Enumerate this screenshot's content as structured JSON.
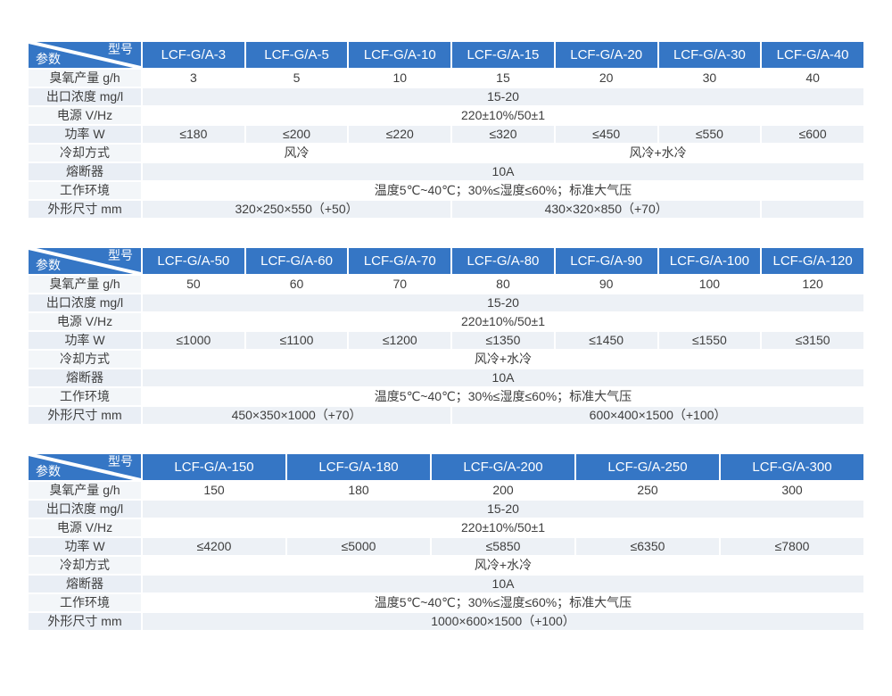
{
  "colors": {
    "header_bg": "#3576c5",
    "header_text": "#ffffff",
    "row_white": "#ffffff",
    "row_light": "#edf1f6",
    "label_tint": "#f3f6f9",
    "body_text": "#3e3e3e"
  },
  "corner": {
    "top_label": "型号",
    "bottom_label": "参数"
  },
  "tables": [
    {
      "models": [
        "LCF-G/A-3",
        "LCF-G/A-5",
        "LCF-G/A-10",
        "LCF-G/A-15",
        "LCF-G/A-20",
        "LCF-G/A-30",
        "LCF-G/A-40"
      ],
      "rows": [
        {
          "label": "臭氧产量 g/h",
          "cells": [
            {
              "text": "3",
              "span": 1
            },
            {
              "text": "5",
              "span": 1
            },
            {
              "text": "10",
              "span": 1
            },
            {
              "text": "15",
              "span": 1
            },
            {
              "text": "20",
              "span": 1
            },
            {
              "text": "30",
              "span": 1
            },
            {
              "text": "40",
              "span": 1
            }
          ]
        },
        {
          "label": "出口浓度 mg/l",
          "cells": [
            {
              "text": "15-20",
              "span": 7
            }
          ]
        },
        {
          "label": "电源 V/Hz",
          "cells": [
            {
              "text": "220±10%/50±1",
              "span": 7
            }
          ]
        },
        {
          "label": "功率 W",
          "cells": [
            {
              "text": "≤180",
              "span": 1
            },
            {
              "text": "≤200",
              "span": 1
            },
            {
              "text": "≤220",
              "span": 1
            },
            {
              "text": "≤320",
              "span": 1
            },
            {
              "text": "≤450",
              "span": 1
            },
            {
              "text": "≤550",
              "span": 1
            },
            {
              "text": "≤600",
              "span": 1
            }
          ]
        },
        {
          "label": "冷却方式",
          "cells": [
            {
              "text": "风冷",
              "span": 3
            },
            {
              "text": "风冷+水冷",
              "span": 4
            }
          ]
        },
        {
          "label": "熔断器",
          "cells": [
            {
              "text": "10A",
              "span": 7
            }
          ]
        },
        {
          "label": "工作环境",
          "cells": [
            {
              "text": "温度5℃~40℃；30%≤湿度≤60%；标准大气压",
              "span": 7
            }
          ]
        },
        {
          "label": "外形尺寸 mm",
          "cells": [
            {
              "text": "320×250×550（+50）",
              "span": 3
            },
            {
              "text": "430×320×850（+70）",
              "span": 3
            },
            {
              "text": "",
              "span": 1
            }
          ]
        }
      ]
    },
    {
      "models": [
        "LCF-G/A-50",
        "LCF-G/A-60",
        "LCF-G/A-70",
        "LCF-G/A-80",
        "LCF-G/A-90",
        "LCF-G/A-100",
        "LCF-G/A-120"
      ],
      "rows": [
        {
          "label": "臭氧产量 g/h",
          "cells": [
            {
              "text": "50",
              "span": 1
            },
            {
              "text": "60",
              "span": 1
            },
            {
              "text": "70",
              "span": 1
            },
            {
              "text": "80",
              "span": 1
            },
            {
              "text": "90",
              "span": 1
            },
            {
              "text": "100",
              "span": 1
            },
            {
              "text": "120",
              "span": 1
            }
          ]
        },
        {
          "label": "出口浓度 mg/l",
          "cells": [
            {
              "text": "15-20",
              "span": 7
            }
          ]
        },
        {
          "label": "电源 V/Hz",
          "cells": [
            {
              "text": "220±10%/50±1",
              "span": 7
            }
          ]
        },
        {
          "label": "功率 W",
          "cells": [
            {
              "text": "≤1000",
              "span": 1
            },
            {
              "text": "≤1100",
              "span": 1
            },
            {
              "text": "≤1200",
              "span": 1
            },
            {
              "text": "≤1350",
              "span": 1
            },
            {
              "text": "≤1450",
              "span": 1
            },
            {
              "text": "≤1550",
              "span": 1
            },
            {
              "text": "≤3150",
              "span": 1
            }
          ]
        },
        {
          "label": "冷却方式",
          "cells": [
            {
              "text": "风冷+水冷",
              "span": 7
            }
          ]
        },
        {
          "label": "熔断器",
          "cells": [
            {
              "text": "10A",
              "span": 7
            }
          ]
        },
        {
          "label": "工作环境",
          "cells": [
            {
              "text": "温度5℃~40℃；30%≤湿度≤60%；标准大气压",
              "span": 7
            }
          ]
        },
        {
          "label": "外形尺寸 mm",
          "cells": [
            {
              "text": "450×350×1000（+70）",
              "span": 3
            },
            {
              "text": "600×400×1500（+100）",
              "span": 4
            }
          ]
        }
      ]
    },
    {
      "models": [
        "LCF-G/A-150",
        "LCF-G/A-180",
        "LCF-G/A-200",
        "LCF-G/A-250",
        "LCF-G/A-300"
      ],
      "rows": [
        {
          "label": "臭氧产量 g/h",
          "cells": [
            {
              "text": "150",
              "span": 1
            },
            {
              "text": "180",
              "span": 1
            },
            {
              "text": "200",
              "span": 1
            },
            {
              "text": "250",
              "span": 1
            },
            {
              "text": "300",
              "span": 1
            }
          ]
        },
        {
          "label": "出口浓度 mg/l",
          "cells": [
            {
              "text": "15-20",
              "span": 5
            }
          ]
        },
        {
          "label": "电源 V/Hz",
          "cells": [
            {
              "text": "220±10%/50±1",
              "span": 5
            }
          ]
        },
        {
          "label": "功率 W",
          "cells": [
            {
              "text": "≤4200",
              "span": 1
            },
            {
              "text": "≤5000",
              "span": 1
            },
            {
              "text": "≤5850",
              "span": 1
            },
            {
              "text": "≤6350",
              "span": 1
            },
            {
              "text": "≤7800",
              "span": 1
            }
          ]
        },
        {
          "label": "冷却方式",
          "cells": [
            {
              "text": "风冷+水冷",
              "span": 5
            }
          ]
        },
        {
          "label": "熔断器",
          "cells": [
            {
              "text": "10A",
              "span": 5
            }
          ]
        },
        {
          "label": "工作环境",
          "cells": [
            {
              "text": "温度5℃~40℃；30%≤湿度≤60%；标准大气压",
              "span": 5
            }
          ]
        },
        {
          "label": "外形尺寸 mm",
          "cells": [
            {
              "text": "1000×600×1500（+100）",
              "span": 5
            }
          ]
        }
      ]
    }
  ]
}
